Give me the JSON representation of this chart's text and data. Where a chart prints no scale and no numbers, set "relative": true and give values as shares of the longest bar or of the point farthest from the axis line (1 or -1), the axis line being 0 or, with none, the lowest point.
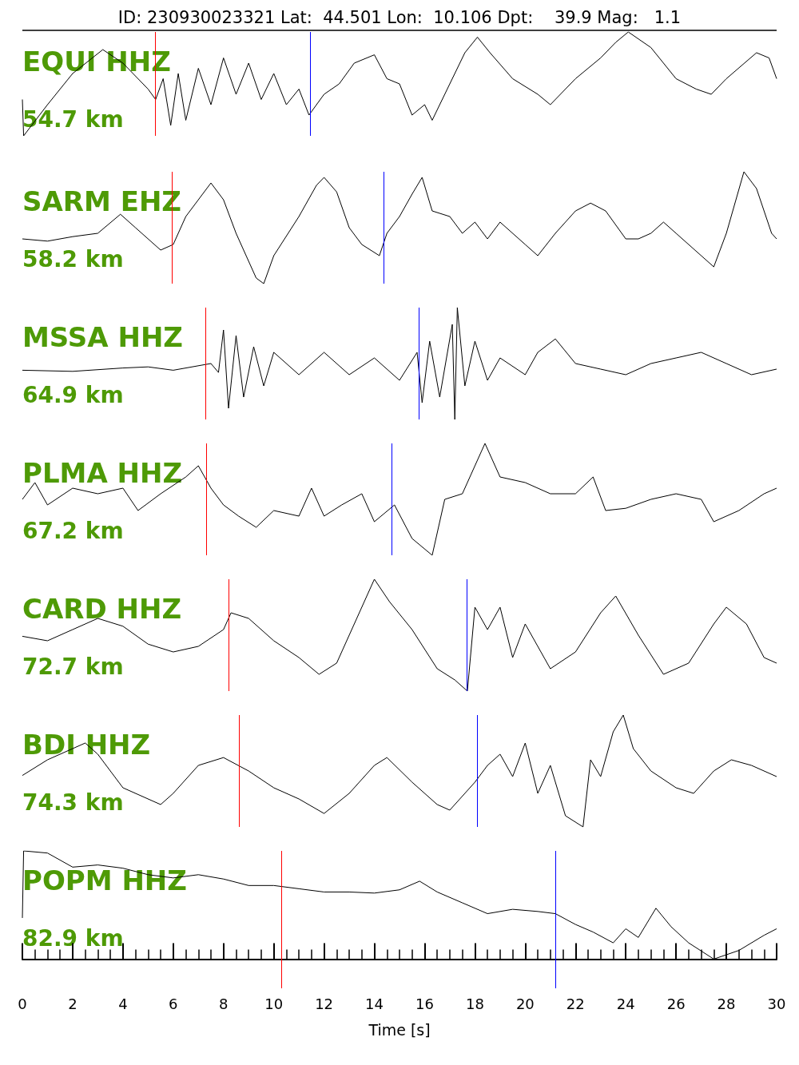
{
  "chart_data": [
    {
      "type": "line",
      "title": "ID: 230930023321 Lat:  44.501 Lon:  10.106 Dpt:    39.9 Mag:   1.1",
      "relative": true,
      "xlim": [
        0,
        30
      ],
      "tick_labels": false,
      "marker": "none",
      "annotations": [
        "54.7 km"
      ],
      "series": [
        {
          "name": "EQUI HHZ",
          "color": "#000000",
          "x": [
            0,
            0.05,
            1,
            2,
            3.2,
            4,
            5,
            5.3,
            5.6,
            5.9,
            6.2,
            6.5,
            7,
            7.5,
            8,
            8.5,
            9,
            9.5,
            10,
            10.5,
            11,
            11.4,
            12,
            12.6,
            13.2,
            14,
            14.5,
            15,
            15.5,
            16,
            16.3,
            17,
            17.6,
            18.1,
            18.6,
            19.5,
            20.5,
            21,
            22,
            23,
            23.6,
            24.1,
            25,
            26,
            26.8,
            27.4,
            28,
            29.2,
            29.7,
            30
          ],
          "values": [
            0.35,
            0,
            0.3,
            0.6,
            0.83,
            0.7,
            0.45,
            0.35,
            0.55,
            0.1,
            0.6,
            0.15,
            0.65,
            0.3,
            0.75,
            0.4,
            0.7,
            0.35,
            0.6,
            0.3,
            0.45,
            0.2,
            0.4,
            0.5,
            0.7,
            0.78,
            0.55,
            0.5,
            0.2,
            0.3,
            0.15,
            0.5,
            0.8,
            0.95,
            0.8,
            0.55,
            0.4,
            0.3,
            0.55,
            0.75,
            0.9,
            1,
            0.85,
            0.55,
            0.45,
            0.4,
            0.55,
            0.8,
            0.75,
            0.55
          ]
        }
      ],
      "ref_lines": [
        {
          "axis": "x",
          "value": 5.27,
          "color": "#ff0000"
        },
        {
          "axis": "x",
          "value": 11.44,
          "color": "#0000ff"
        }
      ]
    },
    {
      "type": "line",
      "relative": true,
      "xlim": [
        0,
        30
      ],
      "tick_labels": false,
      "marker": "none",
      "annotations": [
        "58.2 km"
      ],
      "series": [
        {
          "name": "SARM EHZ",
          "color": "#000000",
          "x": [
            0,
            1,
            2,
            3,
            3.9,
            4.5,
            5.5,
            6,
            6.5,
            7,
            7.5,
            8,
            8.5,
            9.3,
            9.6,
            10,
            11,
            11.7,
            12,
            12.5,
            13,
            13.5,
            14.2,
            14.5,
            15,
            15.5,
            15.9,
            16.3,
            17,
            17.5,
            18,
            18.5,
            19,
            20,
            20.5,
            21.2,
            22,
            22.6,
            23.2,
            24,
            24.5,
            25,
            25.5,
            26,
            27.5,
            28,
            28.7,
            29.2,
            29.8,
            30
          ],
          "values": [
            0.4,
            0.38,
            0.42,
            0.45,
            0.62,
            0.5,
            0.3,
            0.35,
            0.6,
            0.75,
            0.9,
            0.75,
            0.45,
            0.05,
            0,
            0.25,
            0.6,
            0.88,
            0.95,
            0.82,
            0.5,
            0.35,
            0.25,
            0.45,
            0.6,
            0.8,
            0.95,
            0.65,
            0.6,
            0.45,
            0.55,
            0.4,
            0.55,
            0.35,
            0.25,
            0.45,
            0.65,
            0.72,
            0.65,
            0.4,
            0.4,
            0.45,
            0.55,
            0.45,
            0.15,
            0.45,
            1,
            0.85,
            0.45,
            0.4
          ]
        }
      ],
      "ref_lines": [
        {
          "axis": "x",
          "value": 5.94,
          "color": "#ff0000"
        },
        {
          "axis": "x",
          "value": 14.36,
          "color": "#0000ff"
        }
      ]
    },
    {
      "type": "line",
      "relative": true,
      "xlim": [
        0,
        30
      ],
      "tick_labels": false,
      "marker": "none",
      "annotations": [
        "64.9 km"
      ],
      "series": [
        {
          "name": "MSSA HHZ",
          "color": "#000000",
          "x": [
            0,
            2,
            4,
            5,
            6,
            7.5,
            7.8,
            8,
            8.2,
            8.5,
            8.8,
            9.2,
            9.6,
            10,
            11,
            12,
            13,
            14,
            15,
            15.7,
            15.9,
            16.2,
            16.6,
            17.1,
            17.2,
            17.3,
            17.6,
            18,
            18.5,
            19,
            20,
            20.5,
            21.2,
            22,
            23,
            24,
            25,
            26,
            27,
            28,
            29,
            30
          ],
          "values": [
            0.44,
            0.43,
            0.46,
            0.47,
            0.44,
            0.5,
            0.42,
            0.8,
            0.1,
            0.75,
            0.2,
            0.65,
            0.3,
            0.6,
            0.4,
            0.6,
            0.4,
            0.55,
            0.35,
            0.6,
            0.15,
            0.7,
            0.2,
            0.85,
            0,
            1,
            0.3,
            0.7,
            0.35,
            0.55,
            0.4,
            0.6,
            0.72,
            0.5,
            0.45,
            0.4,
            0.5,
            0.55,
            0.6,
            0.5,
            0.4,
            0.45
          ]
        }
      ],
      "ref_lines": [
        {
          "axis": "x",
          "value": 7.28,
          "color": "#ff0000"
        },
        {
          "axis": "x",
          "value": 15.76,
          "color": "#0000ff"
        }
      ]
    },
    {
      "type": "line",
      "relative": true,
      "xlim": [
        0,
        30
      ],
      "tick_labels": false,
      "marker": "none",
      "annotations": [
        "67.2 km"
      ],
      "series": [
        {
          "name": "PLMA HHZ",
          "color": "#000000",
          "x": [
            0,
            0.5,
            1,
            2,
            3,
            4,
            4.6,
            5.5,
            6.5,
            7,
            7.5,
            8,
            8.6,
            9.3,
            10,
            11,
            11.5,
            12,
            12.7,
            13.5,
            14,
            14.8,
            15.5,
            16.3,
            16.8,
            17.5,
            18.4,
            19,
            20,
            21,
            22,
            22.7,
            23.2,
            24,
            25,
            26,
            27,
            27.5,
            28.5,
            29.5,
            30
          ],
          "values": [
            0.5,
            0.65,
            0.45,
            0.6,
            0.55,
            0.6,
            0.4,
            0.55,
            0.7,
            0.8,
            0.6,
            0.45,
            0.35,
            0.25,
            0.4,
            0.35,
            0.6,
            0.35,
            0.45,
            0.55,
            0.3,
            0.45,
            0.15,
            0,
            0.5,
            0.55,
            1,
            0.7,
            0.65,
            0.55,
            0.55,
            0.7,
            0.4,
            0.42,
            0.5,
            0.55,
            0.5,
            0.3,
            0.4,
            0.55,
            0.6
          ]
        }
      ],
      "ref_lines": [
        {
          "axis": "x",
          "value": 7.31,
          "color": "#ff0000"
        },
        {
          "axis": "x",
          "value": 14.68,
          "color": "#0000ff"
        }
      ]
    },
    {
      "type": "line",
      "relative": true,
      "xlim": [
        0,
        30
      ],
      "tick_labels": false,
      "marker": "none",
      "annotations": [
        "72.7 km"
      ],
      "series": [
        {
          "name": "CARD HHZ",
          "color": "#000000",
          "x": [
            0,
            1,
            2,
            3,
            4,
            5,
            6,
            7,
            8,
            8.3,
            9,
            10,
            11,
            11.8,
            12.5,
            13.5,
            14,
            14.6,
            15.5,
            16.5,
            17.2,
            17.7,
            18,
            18.5,
            19,
            19.5,
            20,
            21,
            22,
            23,
            23.6,
            24.5,
            25.5,
            26.5,
            27.5,
            28,
            28.8,
            29.5,
            30
          ],
          "values": [
            0.49,
            0.45,
            0.55,
            0.65,
            0.58,
            0.42,
            0.35,
            0.4,
            0.55,
            0.7,
            0.65,
            0.45,
            0.3,
            0.15,
            0.25,
            0.75,
            1,
            0.8,
            0.55,
            0.2,
            0.1,
            0,
            0.75,
            0.55,
            0.75,
            0.3,
            0.6,
            0.2,
            0.35,
            0.7,
            0.85,
            0.5,
            0.15,
            0.25,
            0.6,
            0.75,
            0.6,
            0.3,
            0.25
          ]
        }
      ],
      "ref_lines": [
        {
          "axis": "x",
          "value": 8.2,
          "color": "#ff0000"
        },
        {
          "axis": "x",
          "value": 17.67,
          "color": "#0000ff"
        }
      ]
    },
    {
      "type": "line",
      "relative": true,
      "xlim": [
        0,
        30
      ],
      "tick_labels": false,
      "marker": "none",
      "annotations": [
        "74.3 km"
      ],
      "series": [
        {
          "name": "BDI HHZ",
          "color": "#000000",
          "x": [
            0,
            1,
            2.5,
            3,
            4,
            5.5,
            6,
            7,
            8,
            9,
            10,
            11,
            12,
            13,
            14,
            14.5,
            15.5,
            16.5,
            17,
            18,
            18.5,
            19,
            19.5,
            20,
            20.5,
            21,
            21.6,
            22.3,
            22.6,
            23,
            23.5,
            23.9,
            24.3,
            25,
            26,
            26.7,
            27.5,
            28.2,
            29,
            30
          ],
          "values": [
            0.46,
            0.6,
            0.75,
            0.65,
            0.35,
            0.2,
            0.3,
            0.55,
            0.62,
            0.5,
            0.35,
            0.25,
            0.12,
            0.3,
            0.55,
            0.62,
            0.4,
            0.2,
            0.15,
            0.4,
            0.55,
            0.65,
            0.45,
            0.75,
            0.3,
            0.55,
            0.1,
            0,
            0.6,
            0.45,
            0.85,
            1,
            0.7,
            0.5,
            0.35,
            0.3,
            0.5,
            0.6,
            0.55,
            0.45
          ]
        }
      ],
      "ref_lines": [
        {
          "axis": "x",
          "value": 8.61,
          "color": "#ff0000"
        },
        {
          "axis": "x",
          "value": 18.08,
          "color": "#0000ff"
        }
      ]
    },
    {
      "type": "line",
      "relative": true,
      "xlim": [
        0,
        30
      ],
      "xticks": [
        0,
        2,
        4,
        6,
        8,
        10,
        12,
        14,
        16,
        18,
        20,
        22,
        24,
        26,
        28,
        30
      ],
      "xlabel": "Time [s]",
      "tick_labels": "x",
      "marker": "none",
      "annotations": [
        "82.9 km"
      ],
      "series": [
        {
          "name": "POPM HHZ",
          "color": "#000000",
          "x": [
            0,
            0.05,
            1,
            2,
            3,
            4,
            5,
            6,
            7,
            8,
            9,
            10,
            11,
            12,
            13,
            14,
            15,
            15.8,
            16.5,
            17.5,
            18.5,
            19.5,
            20.5,
            21.2,
            22,
            22.7,
            23.5,
            24,
            24.5,
            25.2,
            25.8,
            26.5,
            27.5,
            28.5,
            29.5,
            30
          ],
          "values": [
            0.38,
            1,
            0.98,
            0.85,
            0.87,
            0.84,
            0.78,
            0.75,
            0.78,
            0.74,
            0.68,
            0.68,
            0.65,
            0.62,
            0.62,
            0.61,
            0.64,
            0.72,
            0.62,
            0.52,
            0.42,
            0.46,
            0.44,
            0.42,
            0.32,
            0.25,
            0.15,
            0.28,
            0.2,
            0.47,
            0.3,
            0.15,
            0,
            0.08,
            0.22,
            0.28
          ]
        }
      ],
      "ref_lines": [
        {
          "axis": "x",
          "value": 10.3,
          "color": "#ff0000"
        },
        {
          "axis": "x",
          "value": 21.2,
          "color": "#0000ff"
        }
      ]
    }
  ]
}
